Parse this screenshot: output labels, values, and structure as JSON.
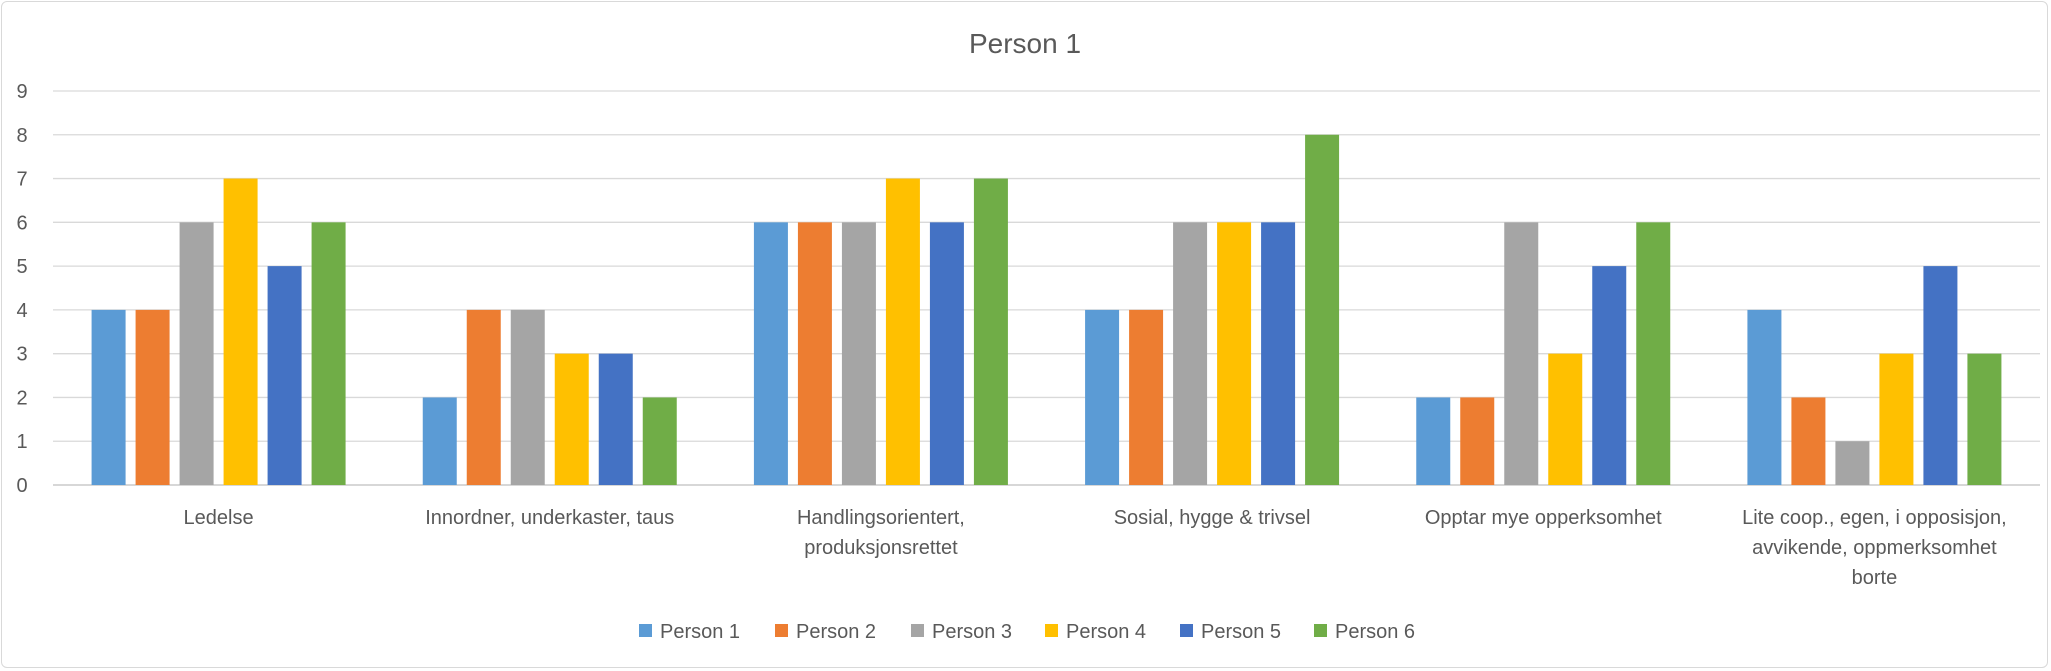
{
  "chart_data": {
    "type": "bar",
    "title": "Person 1",
    "xlabel": "",
    "ylabel": "",
    "ylim": [
      0,
      9
    ],
    "yticks": [
      0,
      1,
      2,
      3,
      4,
      5,
      6,
      7,
      8,
      9
    ],
    "grid": true,
    "legend_position": "bottom",
    "categories": [
      [
        "Ledelse"
      ],
      [
        "Innordner, underkaster, taus"
      ],
      [
        "Handlingsorientert,",
        "produksjonsrettet"
      ],
      [
        "Sosial, hygge & trivsel"
      ],
      [
        "Opptar mye opperksomhet"
      ],
      [
        "Lite coop., egen, i opposisjon,",
        "avvikende, oppmerksomhet",
        "borte"
      ]
    ],
    "series": [
      {
        "name": "Person 1",
        "color": "#5B9BD5",
        "values": [
          4,
          2,
          6,
          4,
          2,
          4
        ]
      },
      {
        "name": "Person 2",
        "color": "#ED7D31",
        "values": [
          4,
          4,
          6,
          4,
          2,
          2
        ]
      },
      {
        "name": "Person 3",
        "color": "#A5A5A5",
        "values": [
          6,
          4,
          6,
          6,
          6,
          1
        ]
      },
      {
        "name": "Person 4",
        "color": "#FFC000",
        "values": [
          7,
          3,
          7,
          6,
          3,
          3
        ]
      },
      {
        "name": "Person 5",
        "color": "#4472C4",
        "values": [
          5,
          3,
          6,
          6,
          5,
          5
        ]
      },
      {
        "name": "Person 6",
        "color": "#70AD47",
        "values": [
          6,
          2,
          7,
          8,
          6,
          3
        ]
      }
    ]
  }
}
